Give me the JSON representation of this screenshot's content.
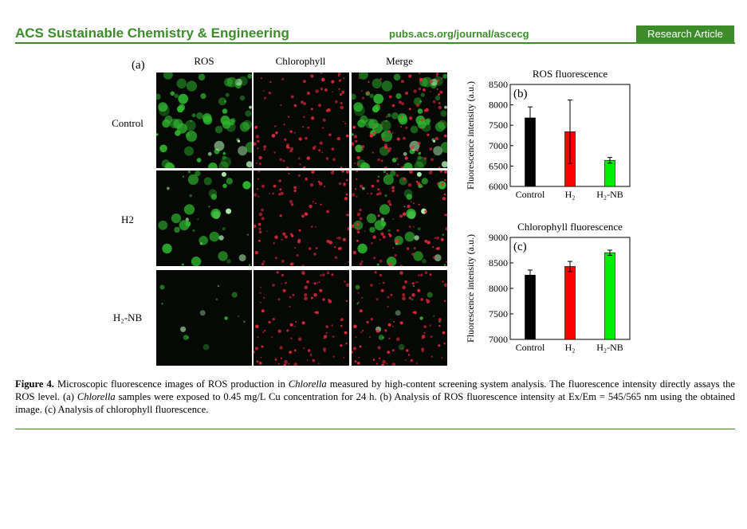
{
  "header": {
    "journal": "ACS Sustainable Chemistry & Engineering",
    "url": "pubs.acs.org/journal/ascecg",
    "badge": "Research Article",
    "accent_color": "#3c8d2a"
  },
  "figure_a": {
    "panel_label": "(a)",
    "columns": [
      "ROS",
      "Chlorophyll",
      "Merge"
    ],
    "rows": [
      "Control",
      "H2",
      "H₂-NB"
    ]
  },
  "chart_data": [
    {
      "type": "bar",
      "panel_label": "(b)",
      "title": "ROS fluorescence",
      "ylabel": "Fluorescence intensity (a.u.)",
      "categories": [
        "Control",
        "H₂",
        "H₂-NB"
      ],
      "values": [
        7680,
        7340,
        6640
      ],
      "errors": [
        270,
        780,
        70
      ],
      "colors": [
        "#000000",
        "#ff0000",
        "#00ee00"
      ],
      "ylim": [
        6000,
        8500
      ],
      "yticks": [
        6000,
        6500,
        7000,
        7500,
        8000,
        8500
      ],
      "grid": false
    },
    {
      "type": "bar",
      "panel_label": "(c)",
      "title": "Chlorophyll fluorescence",
      "ylabel": "Fluorescence intensity (a.u.)",
      "categories": [
        "Control",
        "H₂",
        "H₂-NB"
      ],
      "values": [
        8260,
        8430,
        8700
      ],
      "errors": [
        100,
        100,
        50
      ],
      "colors": [
        "#000000",
        "#ff0000",
        "#00ee00"
      ],
      "ylim": [
        7000,
        9000
      ],
      "yticks": [
        7000,
        7500,
        8000,
        8500,
        9000
      ],
      "grid": false
    }
  ],
  "caption": {
    "label": "Figure 4.",
    "p1": " Microscopic fluorescence images of ROS production in ",
    "i1": "Chlorella",
    "p2": " measured by high-content screening system analysis. The fluorescence intensity directly assays the ROS level. (a) ",
    "i2": "Chlorella",
    "p3": " samples were exposed to 0.45 mg/L Cu concentration for 24 h. (b) Analysis of ROS fluorescence intensity at Ex/Em = 545/565 nm using the obtained image. (c) Analysis of chlorophyll fluorescence."
  }
}
